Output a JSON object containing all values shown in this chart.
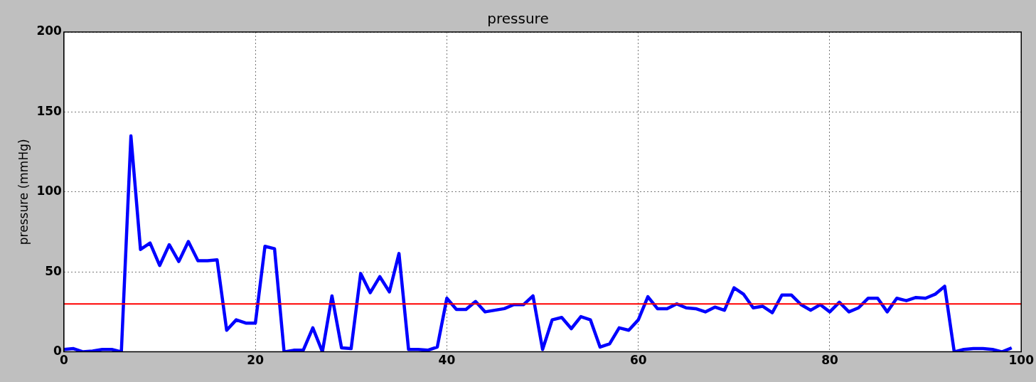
{
  "chart_data": {
    "type": "line",
    "title": "pressure",
    "ylabel": "pressure (mmHg)",
    "x": [
      0,
      1,
      2,
      3,
      4,
      5,
      6,
      7,
      8,
      9,
      10,
      11,
      12,
      13,
      14,
      15,
      16,
      17,
      18,
      19,
      20,
      21,
      22,
      23,
      24,
      25,
      26,
      27,
      28,
      29,
      30,
      31,
      32,
      33,
      34,
      35,
      36,
      37,
      38,
      39,
      40,
      41,
      42,
      43,
      44,
      45,
      46,
      47,
      48,
      49,
      50,
      51,
      52,
      53,
      54,
      55,
      56,
      57,
      58,
      59,
      60,
      61,
      62,
      63,
      64,
      65,
      66,
      67,
      68,
      69,
      70,
      71,
      72,
      73,
      74,
      75,
      76,
      77,
      78,
      79,
      80,
      81,
      82,
      83,
      84,
      85,
      86,
      87,
      88,
      89,
      90,
      91,
      92,
      93,
      94,
      95,
      96,
      97,
      98,
      99
    ],
    "series": [
      {
        "color": "#0000ff",
        "values": [
          1.5,
          2,
          0,
          0.5,
          1.5,
          1.5,
          0,
          135,
          64,
          68,
          54,
          67,
          56.5,
          69,
          57,
          57,
          57.5,
          13.5,
          20,
          18,
          18,
          66,
          64.5,
          0,
          1,
          1,
          15,
          0,
          35,
          2.5,
          2,
          49,
          37,
          47,
          37.5,
          61.5,
          1.5,
          1.5,
          1,
          3,
          33.5,
          26.5,
          26.5,
          31.5,
          25,
          26,
          27,
          29.5,
          29.5,
          35,
          1.5,
          20,
          21.5,
          14.5,
          22,
          20,
          3,
          5,
          15,
          13.5,
          20,
          34.5,
          27,
          27,
          30,
          27.5,
          27,
          25,
          28,
          26,
          40,
          36,
          27.5,
          28.5,
          24.5,
          35.5,
          35.5,
          29.5,
          26,
          29.5,
          25,
          31,
          25,
          27.5,
          33.5,
          33.5,
          25,
          33.5,
          32,
          34,
          33.5,
          36,
          41,
          0,
          1.5,
          2,
          2,
          1.5,
          0,
          2.5
        ]
      }
    ],
    "xlim": [
      0,
      100
    ],
    "xticks": [
      0,
      20,
      40,
      60,
      80,
      100
    ],
    "ylim": [
      0,
      200
    ],
    "yticks": [
      0,
      50,
      100,
      150,
      200
    ],
    "grid": true,
    "marker": "none",
    "line_style": "solid",
    "ref_lines": [
      {
        "axis": "y",
        "value": 30,
        "color": "#ff0000"
      }
    ]
  }
}
